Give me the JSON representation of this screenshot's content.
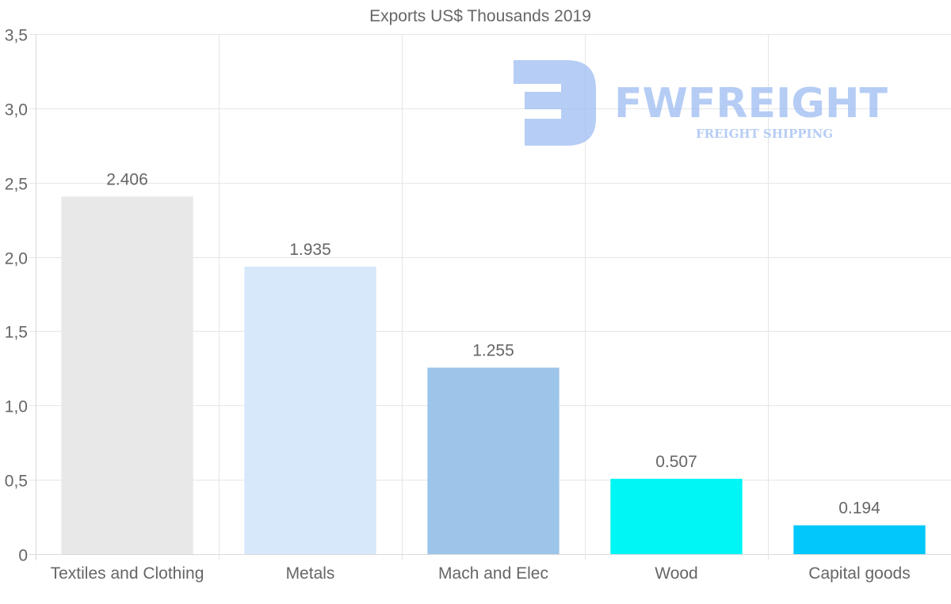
{
  "chart_data": {
    "type": "bar",
    "title": "Exports US$ Thousands 2019",
    "xlabel": "",
    "ylabel": "",
    "categories": [
      "Textiles and Clothing",
      "Metals",
      "Mach and Elec",
      "Wood",
      "Capital goods"
    ],
    "values": [
      2.406,
      1.935,
      1.255,
      0.507,
      0.194
    ],
    "value_labels": [
      "2.406",
      "1.935",
      "1.255",
      "0.507",
      "0.194"
    ],
    "bar_colors": [
      "#e8e8e8",
      "#d6e8fa",
      "#9dc5e9",
      "#00f5f5",
      "#00c8fa"
    ],
    "ylim": [
      0,
      3.5
    ],
    "yticks": [
      0,
      0.5,
      1.0,
      1.5,
      2.0,
      2.5,
      3.0,
      3.5
    ],
    "ytick_labels": [
      "0",
      "0,5",
      "1,0",
      "1,5",
      "2,0",
      "2,5",
      "3,0",
      "3,5"
    ],
    "grid": true,
    "legend": "none"
  },
  "watermark": {
    "brand": "FWFREIGHT",
    "tagline": "FREIGHT SHIPPING",
    "color": "#9dbcf2"
  }
}
